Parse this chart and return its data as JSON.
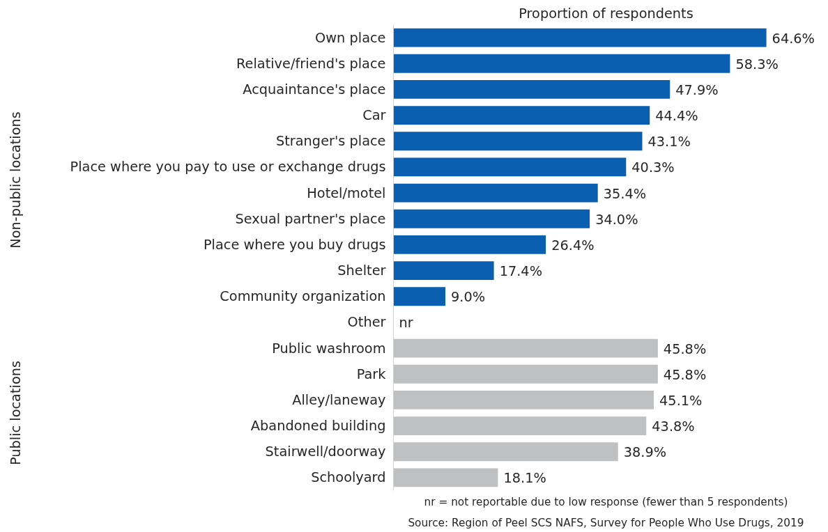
{
  "chart_data": {
    "type": "bar",
    "orientation": "horizontal",
    "relative": false,
    "xlabel": "Proportion of respondents",
    "categories": [
      "Own place",
      "Relative/friend's place",
      "Acquaintance's place",
      "Car",
      "Stranger's place",
      "Place where you pay to use or exchange drugs",
      "Hotel/motel",
      "Sexual partner's place",
      "Place where you buy drugs",
      "Shelter",
      "Community organization",
      "Other",
      "Public washroom",
      "Park",
      "Alley/laneway",
      "Abandoned building",
      "Stairwell/doorway",
      "Schoolyard"
    ],
    "values": [
      64.6,
      58.3,
      47.9,
      44.4,
      43.1,
      40.3,
      35.4,
      34.0,
      26.4,
      17.4,
      9.0,
      null,
      45.8,
      45.8,
      45.1,
      43.8,
      38.9,
      18.1
    ],
    "value_labels": [
      "64.6%",
      "58.3%",
      "47.9%",
      "44.4%",
      "43.1%",
      "40.3%",
      "35.4%",
      "34.0%",
      "26.4%",
      "17.4%",
      "9.0%",
      "nr",
      "45.8%",
      "45.8%",
      "45.1%",
      "43.8%",
      "38.9%",
      "18.1%"
    ],
    "colors": [
      "#0b5fb0",
      "#0b5fb0",
      "#0b5fb0",
      "#0b5fb0",
      "#0b5fb0",
      "#0b5fb0",
      "#0b5fb0",
      "#0b5fb0",
      "#0b5fb0",
      "#0b5fb0",
      "#0b5fb0",
      "#0b5fb0",
      "#bfc0c2",
      "#bfc0c2",
      "#bfc0c2",
      "#bfc0c2",
      "#bfc0c2",
      "#bfc0c2"
    ],
    "annotations": [
      "Non-public locations",
      "Public locations",
      "nr = not reportable due to low response (fewer than 5 respondents)",
      "Source: Region of Peel SCS NAFS, Survey for People Who Use Drugs, 2019"
    ],
    "grid": false
  }
}
